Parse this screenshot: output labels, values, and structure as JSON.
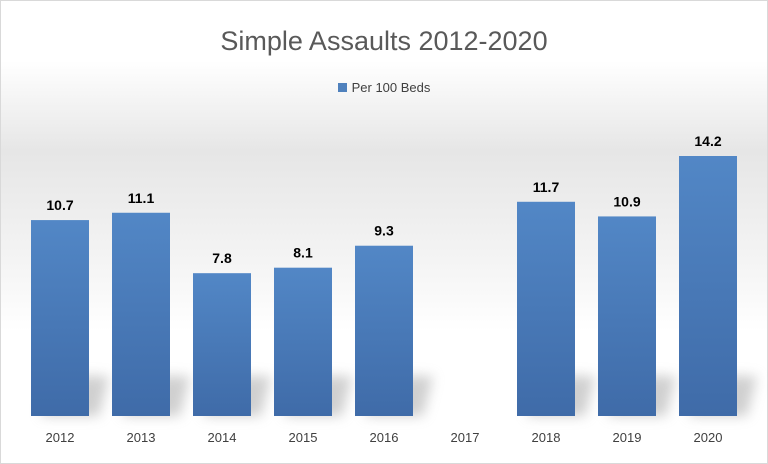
{
  "chart_data": {
    "type": "bar",
    "title": "Simple Assaults 2012-2020",
    "xlabel": "",
    "ylabel": "",
    "legend_position": "top",
    "categories": [
      "2012",
      "2013",
      "2014",
      "2015",
      "2016",
      "2017",
      "2018",
      "2019",
      "2020"
    ],
    "series": [
      {
        "name": "Per 100 Beds",
        "values": [
          10.7,
          11.1,
          7.8,
          8.1,
          9.3,
          null,
          11.7,
          10.9,
          14.2
        ]
      }
    ],
    "data_labels": [
      "10.7",
      "11.1",
      "7.8",
      "8.1",
      "9.3",
      "",
      "11.7",
      "10.9",
      "14.2"
    ],
    "ylim": [
      0,
      14.2
    ],
    "grid": false,
    "colors": {
      "bar": "#4f81bd",
      "bar_dark": "#3d6aa6"
    }
  }
}
